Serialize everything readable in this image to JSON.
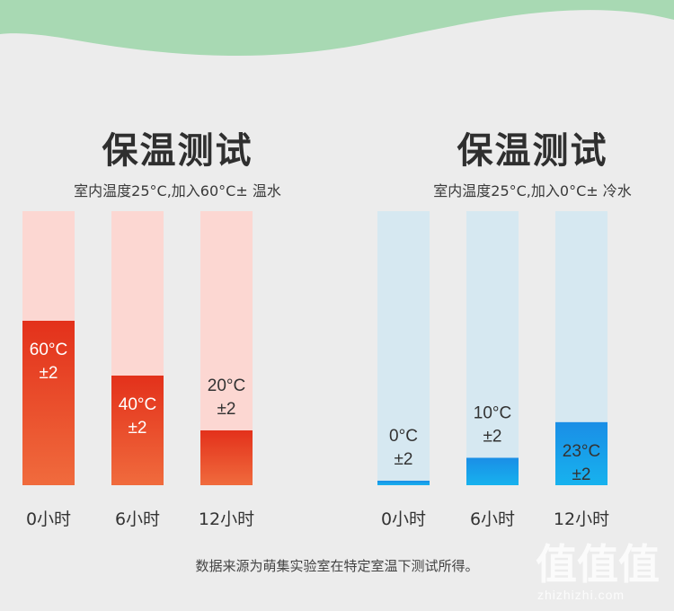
{
  "charts": [
    {
      "title": "保温测试",
      "subtitle": "室内温度25°C,加入60°C± 温水",
      "track_color": "#fcd7d2",
      "fill_top_color": "#e3311b",
      "fill_bottom_color": "#f06b3d",
      "label_color": "#ffffff"
    },
    {
      "title": "保温测试",
      "subtitle": "室内温度25°C,加入0°C± 冷水",
      "track_color": "#d6e8f1",
      "fill_top_color": "#1a8ee6",
      "fill_bottom_color": "#17b2ee",
      "label_color": "#333333"
    }
  ],
  "chart_data": [
    {
      "type": "bar",
      "title": "保温测试",
      "subtitle": "室内温度25°C,加入60°C± 温水",
      "categories": [
        "0小时",
        "6小时",
        "12小时"
      ],
      "values": [
        60,
        40,
        20
      ],
      "value_labels": [
        "60°C",
        "40°C",
        "20°C"
      ],
      "tolerance_labels": [
        "±2",
        "±2",
        "±2"
      ],
      "ylim": [
        0,
        100
      ],
      "grid": false,
      "xlabel": "",
      "ylabel": ""
    },
    {
      "type": "bar",
      "title": "保温测试",
      "subtitle": "室内温度25°C,加入0°C± 冷水",
      "categories": [
        "0小时",
        "6小时",
        "12小时"
      ],
      "values": [
        0,
        10,
        23
      ],
      "value_labels": [
        "0°C",
        "10°C",
        "23°C"
      ],
      "tolerance_labels": [
        "±2",
        "±2",
        "±2"
      ],
      "ylim": [
        0,
        100
      ],
      "grid": false,
      "xlabel": "",
      "ylabel": ""
    }
  ],
  "footnote": "数据来源为萌集实验室在特定室温下测试所得。",
  "watermark": {
    "logo_text": "值值值",
    "site": "zhizhizhi.com"
  },
  "colors": {
    "background": "#ececec",
    "wave": "#a8d9b3"
  }
}
